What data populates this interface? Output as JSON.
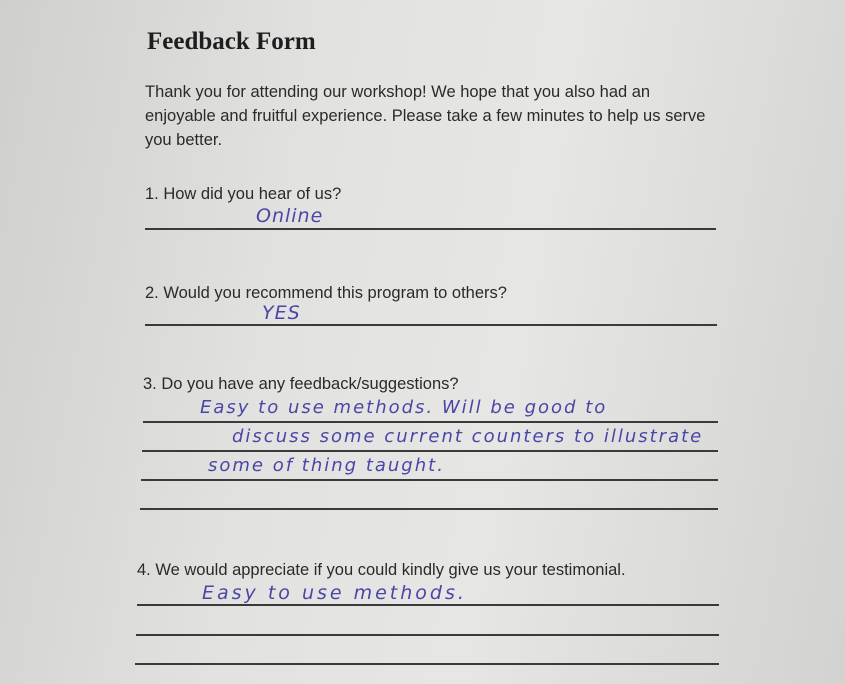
{
  "title": "Feedback Form",
  "intro": "Thank you for attending our workshop! We hope that you also had an enjoyable and fruitful experience. Please take a few minutes to help us serve you better.",
  "questions": [
    {
      "label": "1. How did you hear of us?",
      "answers": [
        "Online"
      ]
    },
    {
      "label": "2. Would you recommend this program to others?",
      "answers": [
        "YES"
      ]
    },
    {
      "label": "3. Do you have any feedback/suggestions?",
      "answers": [
        "Easy to use methods. Will be good to",
        "discuss some current counters to illustrate",
        "some of thing taught.",
        ""
      ]
    },
    {
      "label": "4. We would appreciate if you could kindly give us your testimonial.",
      "answers": [
        "Easy to use methods.",
        "",
        ""
      ]
    }
  ],
  "colors": {
    "ink": "#4b46a6",
    "paper": "#e2e2e0"
  }
}
